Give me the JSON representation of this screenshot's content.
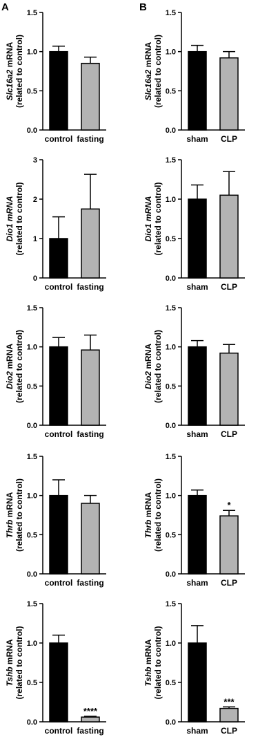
{
  "panel_labels": [
    "A",
    "B"
  ],
  "chart_data": [
    {
      "type": "bar",
      "panel": "A",
      "ylabel_gene": "Slc16a2",
      "ylabel_rest": " mRNA",
      "ylabel_line2": "(related to control)",
      "categories": [
        "control",
        "fasting"
      ],
      "values": [
        1.0,
        0.85
      ],
      "errors": [
        0.07,
        0.08
      ],
      "colors": [
        "#000000",
        "#b3b3b3"
      ],
      "ylim": [
        0,
        1.5
      ],
      "yticks": [
        "0.0",
        "0.5",
        "1.0",
        "1.5"
      ],
      "annotations": [
        "",
        ""
      ]
    },
    {
      "type": "bar",
      "panel": "B",
      "ylabel_gene": "Slc16a2",
      "ylabel_rest": " mRNA",
      "ylabel_line2": "(related to control)",
      "categories": [
        "sham",
        "CLP"
      ],
      "values": [
        1.0,
        0.92
      ],
      "errors": [
        0.08,
        0.08
      ],
      "colors": [
        "#000000",
        "#b3b3b3"
      ],
      "ylim": [
        0,
        1.5
      ],
      "yticks": [
        "0.0",
        "0.5",
        "1.0",
        "1.5"
      ],
      "annotations": [
        "",
        ""
      ]
    },
    {
      "type": "bar",
      "panel": "A",
      "ylabel_gene": "Dio1 mRNA",
      "ylabel_rest": "",
      "ylabel_line2": "(related to control)",
      "categories": [
        "control",
        "fasting"
      ],
      "values": [
        1.0,
        1.75
      ],
      "errors": [
        0.55,
        0.88
      ],
      "colors": [
        "#000000",
        "#b3b3b3"
      ],
      "ylim": [
        0,
        3
      ],
      "yticks": [
        "0",
        "1",
        "2",
        "3"
      ],
      "annotations": [
        "",
        ""
      ]
    },
    {
      "type": "bar",
      "panel": "B",
      "ylabel_gene": "Dio1 mRNA",
      "ylabel_rest": "",
      "ylabel_line2": "(related to control)",
      "categories": [
        "sham",
        "CLP"
      ],
      "values": [
        1.0,
        1.05
      ],
      "errors": [
        0.18,
        0.3
      ],
      "colors": [
        "#000000",
        "#b3b3b3"
      ],
      "ylim": [
        0,
        1.5
      ],
      "yticks": [
        "0.0",
        "0.5",
        "1.0",
        "1.5"
      ],
      "annotations": [
        "",
        ""
      ]
    },
    {
      "type": "bar",
      "panel": "A",
      "ylabel_gene": "Dio2",
      "ylabel_rest": " mRNA",
      "ylabel_line2": "(related to control)",
      "categories": [
        "control",
        "fasting"
      ],
      "values": [
        1.0,
        0.96
      ],
      "errors": [
        0.12,
        0.19
      ],
      "colors": [
        "#000000",
        "#b3b3b3"
      ],
      "ylim": [
        0,
        1.5
      ],
      "yticks": [
        "0.0",
        "0.5",
        "1.0",
        "1.5"
      ],
      "annotations": [
        "",
        ""
      ]
    },
    {
      "type": "bar",
      "panel": "B",
      "ylabel_gene": "Dio2",
      "ylabel_rest": " mRNA",
      "ylabel_line2": "(related to control)",
      "categories": [
        "sham",
        "CLP"
      ],
      "values": [
        1.0,
        0.92
      ],
      "errors": [
        0.08,
        0.11
      ],
      "colors": [
        "#000000",
        "#b3b3b3"
      ],
      "ylim": [
        0,
        1.5
      ],
      "yticks": [
        "0.0",
        "0.5",
        "1.0",
        "1.5"
      ],
      "annotations": [
        "",
        ""
      ]
    },
    {
      "type": "bar",
      "panel": "A",
      "ylabel_gene": "Thrb",
      "ylabel_rest": " mRNA",
      "ylabel_line2": "(related to control)",
      "categories": [
        "control",
        "fasting"
      ],
      "values": [
        1.0,
        0.9
      ],
      "errors": [
        0.2,
        0.1
      ],
      "colors": [
        "#000000",
        "#b3b3b3"
      ],
      "ylim": [
        0,
        1.5
      ],
      "yticks": [
        "0.0",
        "0.5",
        "1.0",
        "1.5"
      ],
      "annotations": [
        "",
        ""
      ]
    },
    {
      "type": "bar",
      "panel": "B",
      "ylabel_gene": "Thrb",
      "ylabel_rest": " mRNA",
      "ylabel_line2": "(related to control)",
      "categories": [
        "sham",
        "CLP"
      ],
      "values": [
        1.0,
        0.74
      ],
      "errors": [
        0.07,
        0.07
      ],
      "colors": [
        "#000000",
        "#b3b3b3"
      ],
      "ylim": [
        0,
        1.5
      ],
      "yticks": [
        "0.0",
        "0.5",
        "1.0",
        "1.5"
      ],
      "annotations": [
        "",
        "*"
      ]
    },
    {
      "type": "bar",
      "panel": "A",
      "ylabel_gene": "Tshb",
      "ylabel_rest": " mRNA",
      "ylabel_line2": "(related to control)",
      "categories": [
        "control",
        "fasting"
      ],
      "values": [
        1.0,
        0.06
      ],
      "errors": [
        0.1,
        0.01
      ],
      "colors": [
        "#000000",
        "#b3b3b3"
      ],
      "ylim": [
        0,
        1.5
      ],
      "yticks": [
        "0.0",
        "0.5",
        "1.0",
        "1.5"
      ],
      "annotations": [
        "",
        "****"
      ]
    },
    {
      "type": "bar",
      "panel": "B",
      "ylabel_gene": "Tshb",
      "ylabel_rest": " mRNA",
      "ylabel_line2": "(related to control)",
      "categories": [
        "sham",
        "CLP"
      ],
      "values": [
        1.0,
        0.17
      ],
      "errors": [
        0.22,
        0.02
      ],
      "colors": [
        "#000000",
        "#b3b3b3"
      ],
      "ylim": [
        0,
        1.5
      ],
      "yticks": [
        "0.0",
        "0.5",
        "1.0",
        "1.5"
      ],
      "annotations": [
        "",
        "***"
      ]
    }
  ]
}
